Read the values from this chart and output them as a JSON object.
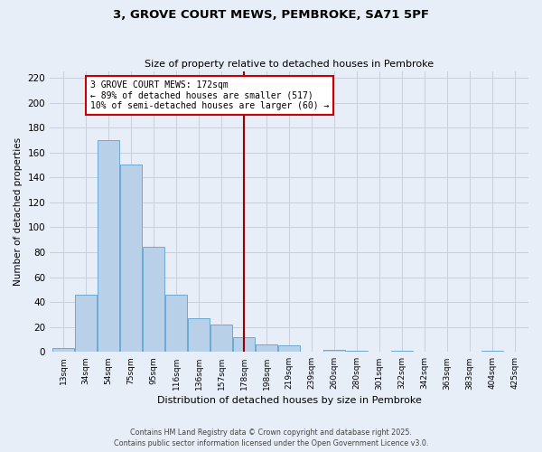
{
  "title": "3, GROVE COURT MEWS, PEMBROKE, SA71 5PF",
  "subtitle": "Size of property relative to detached houses in Pembroke",
  "xlabel": "Distribution of detached houses by size in Pembroke",
  "ylabel": "Number of detached properties",
  "bin_labels": [
    "13sqm",
    "34sqm",
    "54sqm",
    "75sqm",
    "95sqm",
    "116sqm",
    "136sqm",
    "157sqm",
    "178sqm",
    "198sqm",
    "219sqm",
    "239sqm",
    "260sqm",
    "280sqm",
    "301sqm",
    "322sqm",
    "342sqm",
    "363sqm",
    "383sqm",
    "404sqm",
    "425sqm"
  ],
  "bar_heights": [
    3,
    46,
    170,
    150,
    84,
    46,
    27,
    22,
    12,
    6,
    5,
    0,
    2,
    1,
    0,
    1,
    0,
    0,
    0,
    1,
    0
  ],
  "bar_color": "#b8d0e8",
  "bar_edge_color": "#6aaad4",
  "property_line_color": "#990000",
  "annotation_text": "3 GROVE COURT MEWS: 172sqm\n← 89% of detached houses are smaller (517)\n10% of semi-detached houses are larger (60) →",
  "annotation_box_color": "#ffffff",
  "annotation_border_color": "#cc0000",
  "ylim": [
    0,
    225
  ],
  "yticks": [
    0,
    20,
    40,
    60,
    80,
    100,
    120,
    140,
    160,
    180,
    200,
    220
  ],
  "grid_color": "#c8d0dc",
  "background_color": "#e8eef8",
  "footer_line1": "Contains HM Land Registry data © Crown copyright and database right 2025.",
  "footer_line2": "Contains public sector information licensed under the Open Government Licence v3.0."
}
